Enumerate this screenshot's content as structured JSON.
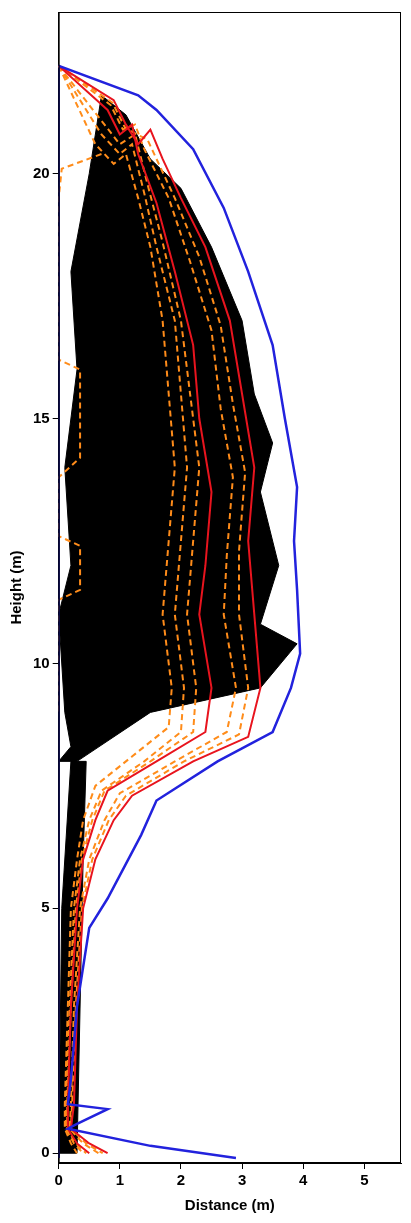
{
  "chart_data": {
    "type": "line",
    "x_label": "Distance (m)",
    "y_label": "Height (m)",
    "xlim": [
      0,
      5.6
    ],
    "xticks": [
      0,
      1,
      2,
      3,
      4,
      5
    ],
    "ylim": [
      -0.2,
      23.3
    ],
    "yticks": [
      0,
      5,
      10,
      15,
      20
    ],
    "grid": false,
    "series": [
      {
        "type": "area",
        "color": "#000000",
        "line_style": "solid",
        "marker": "none",
        "x": [
          0,
          0.3,
          1.5,
          3.3,
          3.9,
          3.3,
          3.6,
          3.3,
          3.5,
          3.2,
          3.0,
          2.5,
          2.0,
          1.5,
          1.1,
          0.7,
          0.5,
          0.2,
          0.3,
          0.1,
          0.2,
          0.0,
          0.1,
          0.2,
          0
        ],
        "values": [
          8,
          8,
          9,
          9.5,
          10.4,
          10.8,
          12,
          13.5,
          14.5,
          15.5,
          17,
          18.5,
          19.7,
          20.3,
          21.2,
          21.6,
          20,
          18,
          16,
          14,
          12,
          11,
          9,
          8.3,
          8
        ]
      },
      {
        "type": "area",
        "color": "#000000",
        "line_style": "solid",
        "marker": "none",
        "x": [
          0,
          0.3,
          0.4,
          0.45,
          0.2,
          0.05,
          0
        ],
        "values": [
          0,
          0,
          6,
          8,
          8,
          5,
          0
        ]
      },
      {
        "color": "#ff8c1a",
        "line_style": "dashed",
        "marker": "none",
        "x": [
          0,
          0.6,
          0.9,
          1.1,
          1.3,
          1.5,
          1.7,
          1.8,
          1.9,
          1.8,
          1.7,
          1.85,
          1.8,
          1.2,
          0.6,
          0.4,
          0.3,
          0.2,
          0.15,
          0.1,
          0.1,
          0.2,
          0.3
        ],
        "values": [
          22.2,
          20.6,
          20.2,
          20.4,
          19.5,
          18.5,
          17,
          15.5,
          14,
          12.5,
          11,
          9.5,
          8.7,
          8.1,
          7.5,
          6.8,
          6,
          5,
          3,
          1,
          0.5,
          0.2,
          0
        ]
      },
      {
        "color": "#ff8c1a",
        "line_style": "dashed",
        "marker": "none",
        "x": [
          0,
          0.7,
          1.0,
          1.2,
          1.4,
          1.6,
          1.9,
          2.0,
          2.1,
          2.0,
          1.9,
          2.05,
          2.0,
          1.4,
          0.7,
          0.5,
          0.35,
          0.25,
          0.18,
          0.12,
          0.12,
          0.25,
          0.4
        ],
        "values": [
          22.2,
          20.8,
          20.4,
          20.6,
          19.6,
          18.5,
          17,
          15.5,
          14,
          12.5,
          11,
          9.5,
          8.6,
          8.0,
          7.4,
          6.8,
          6,
          5,
          3,
          1,
          0.5,
          0.2,
          0
        ]
      },
      {
        "color": "#ff8c1a",
        "line_style": "dashed",
        "marker": "none",
        "x": [
          0,
          0.75,
          1.0,
          1.25,
          1.45,
          1.7,
          2.0,
          2.15,
          2.3,
          2.2,
          2.1,
          2.25,
          2.2,
          1.5,
          0.75,
          0.55,
          0.38,
          0.28,
          0.2,
          0.14,
          0.14,
          0.28,
          0.45
        ],
        "values": [
          22.2,
          21.0,
          20.6,
          20.8,
          19.8,
          18.6,
          17,
          15.5,
          14,
          12.5,
          11,
          9.5,
          8.6,
          8.0,
          7.4,
          6.8,
          6,
          5,
          3,
          1,
          0.5,
          0.2,
          0
        ]
      },
      {
        "color": "#ff8c1a",
        "line_style": "dashed",
        "marker": "none",
        "x": [
          0,
          0.85,
          1.05,
          1.25,
          1.4,
          1.8,
          2.15,
          2.5,
          2.65,
          2.85,
          2.75,
          2.7,
          2.9,
          2.75,
          1.9,
          1.0,
          0.75,
          0.5,
          0.35,
          0.25,
          0.2,
          0.18,
          0.4,
          0.65
        ],
        "values": [
          22.2,
          21.4,
          20.9,
          21.0,
          20.5,
          19.5,
          18.2,
          16.8,
          15.2,
          13.8,
          12.2,
          11,
          9.5,
          8.6,
          8.0,
          7.35,
          6.8,
          6,
          5,
          3,
          1,
          0.5,
          0.2,
          0
        ]
      },
      {
        "color": "#ff8c1a",
        "line_style": "dashed",
        "marker": "none",
        "x": [
          0,
          0.88,
          1.08,
          1.28,
          1.45,
          1.9,
          2.3,
          2.65,
          2.85,
          3.05,
          2.95,
          2.95,
          3.1,
          2.95,
          2.05,
          1.1,
          0.82,
          0.55,
          0.38,
          0.28,
          0.22,
          0.2,
          0.45,
          0.72
        ],
        "values": [
          22.2,
          21.45,
          20.95,
          20.8,
          20.7,
          19.5,
          18.3,
          16.9,
          15.3,
          13.9,
          12.3,
          11,
          9.5,
          8.55,
          8.0,
          7.3,
          6.8,
          6,
          5,
          3,
          1,
          0.5,
          0.2,
          0
        ]
      },
      {
        "color": "#ff8c1a",
        "line_style": "dashed",
        "marker": "none",
        "x": [
          0.7,
          0.05,
          0,
          0,
          0.35,
          0.35,
          0,
          0,
          0.35,
          0.35,
          0,
          0
        ],
        "values": [
          20.4,
          20.1,
          19.5,
          16.2,
          16.0,
          14.2,
          13.8,
          12.6,
          12.4,
          11.5,
          11.3,
          9
        ]
      },
      {
        "color": "#e8141e",
        "line_style": "solid",
        "marker": "none",
        "x": [
          0,
          0.8,
          1.0,
          1.2,
          1.3,
          1.6,
          1.9,
          2.2,
          2.3,
          2.5,
          2.4,
          2.3,
          2.5,
          2.4,
          1.6,
          0.8,
          0.6,
          0.4,
          0.3,
          0.2,
          0.15,
          0.15,
          0.3,
          0.5
        ],
        "values": [
          22.2,
          21.3,
          20.8,
          21.0,
          20.4,
          19.4,
          18,
          16.5,
          15,
          13.5,
          12,
          11,
          9.5,
          8.6,
          8.0,
          7.4,
          6.8,
          6,
          5,
          3,
          1,
          0.5,
          0.2,
          0
        ]
      },
      {
        "color": "#e8141e",
        "line_style": "solid",
        "marker": "none",
        "x": [
          0,
          0.9,
          1.1,
          1.3,
          1.5,
          1.7,
          2.0,
          2.4,
          2.8,
          3.0,
          3.2,
          3.1,
          3.2,
          3.3,
          3.1,
          2.2,
          1.2,
          0.9,
          0.6,
          0.4,
          0.3,
          0.25,
          0.2,
          0.5,
          0.8
        ],
        "values": [
          22.2,
          21.5,
          21.0,
          20.6,
          20.9,
          20.3,
          19.5,
          18.5,
          17,
          15.5,
          14,
          12.5,
          11,
          9.5,
          8.5,
          8.0,
          7.3,
          6.8,
          6,
          5,
          3,
          1,
          0.5,
          0.2,
          0
        ]
      },
      {
        "color": "#2222dd",
        "line_style": "solid",
        "marker": "none",
        "x": [
          0,
          0,
          1.3,
          1.6,
          2.2,
          2.7,
          3.1,
          3.5,
          3.7,
          3.9,
          3.85,
          3.9,
          3.95,
          3.8,
          3.5,
          2.6,
          1.6,
          1.35,
          0.8,
          0.5,
          0.3,
          0.2,
          0.15,
          0.8,
          0.3,
          0.15,
          1.5,
          2.9
        ],
        "values": [
          -0.1,
          22.2,
          21.6,
          21.3,
          20.5,
          19.3,
          18,
          16.5,
          15,
          13.6,
          12.5,
          11.5,
          10.2,
          9.5,
          8.6,
          8.0,
          7.2,
          6.5,
          5.2,
          4.6,
          3,
          1.5,
          1.0,
          0.9,
          0.6,
          0.5,
          0.15,
          -0.1
        ]
      }
    ]
  }
}
